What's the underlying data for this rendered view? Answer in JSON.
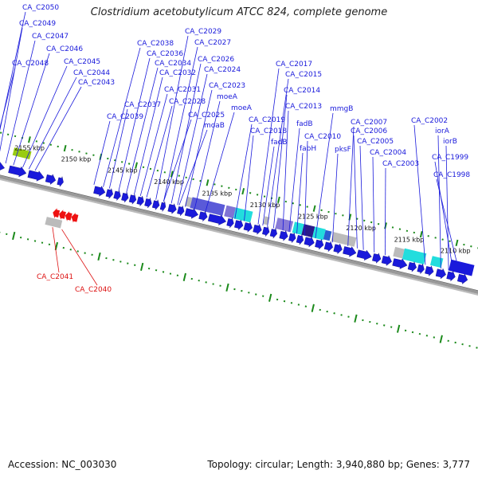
{
  "title": "Clostridium acetobutylicum ATCC 824, complete genome",
  "accession": "Accession: NC_003030",
  "summary": "Topology: circular; Length: 3,940,880 bp; Genes: 3,777",
  "colors": {
    "label_forward": "#1a1adb",
    "label_reverse": "#dd1111",
    "gene_forward": "#1a1adb",
    "gene_reverse": "#ee1111",
    "backbone": "#888888",
    "tick": "#1b8a1b",
    "highlight_cyan": "#22dddd",
    "highlight_lime": "#99cc11",
    "highlight_purple": "#6a5acd",
    "feature_grey": "#bbbbbb"
  },
  "kbp_ticks": [
    "2155 kbp",
    "2150 kbp",
    "2145 kbp",
    "2140 kbp",
    "2135 kbp",
    "2130 kbp",
    "2125 kbp",
    "2120 kbp",
    "2115 kbp",
    "2110 kbp"
  ],
  "gene_labels_forward": [
    "CA_C2050",
    "CA_C2049",
    "CA_C2047",
    "CA_C2046",
    "CA_C2048",
    "CA_C2045",
    "CA_C2044",
    "CA_C2043",
    "CA_C2038",
    "CA_C2029",
    "CA_C2027",
    "CA_C2036",
    "CA_C2034",
    "CA_C2026",
    "CA_C2032",
    "CA_C2024",
    "CA_C2031",
    "CA_C2023",
    "CA_C2037",
    "CA_C2028",
    "moeA",
    "CA_C2039",
    "moeA",
    "CA_C2025",
    "moaB",
    "CA_C2017",
    "CA_C2015",
    "CA_C2014",
    "CA_C2013",
    "mmgB",
    "CA_C2019",
    "fadB",
    "CA_C2018",
    "fadB",
    "CA_C2010",
    "fabH",
    "CA_C2007",
    "CA_C2006",
    "CA_C2005",
    "pksF",
    "CA_C2004",
    "CA_C2003",
    "CA_C2002",
    "iorA",
    "iorB",
    "CA_C1999",
    "CA_C1998"
  ],
  "gene_labels_reverse": [
    "CA_C2041",
    "CA_C2040"
  ]
}
